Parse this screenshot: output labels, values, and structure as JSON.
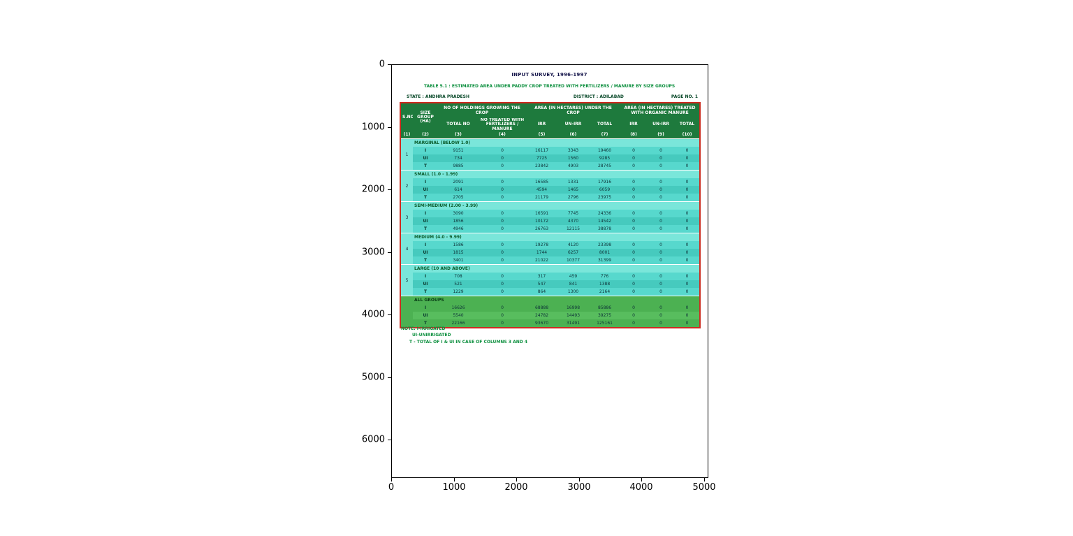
{
  "axes": {
    "y_ticks": [
      "0",
      "1000",
      "2000",
      "3000",
      "4000",
      "5000",
      "6000"
    ],
    "x_ticks": [
      "0",
      "1000",
      "2000",
      "3000",
      "4000",
      "5000"
    ]
  },
  "chart_data": {
    "type": "table",
    "title": "INPUT SURVEY, 1996-1997",
    "subtitle": "TABLE 5.1 : ESTIMATED AREA UNDER PADDY CROP TREATED WITH FERTILIZERS / MANURE BY SIZE GROUPS",
    "state": "STATE : ANDHRA PRADESH",
    "district": "DISTRICT : ADILABAD",
    "page": "PAGE NO. 1",
    "header": {
      "sno": "S.NO",
      "size_group": "SIZE GROUP (HA)",
      "holdings_group": "NO OF HOLDINGS GROWING THE CROP",
      "holdings_sub": [
        "TOTAL NO",
        "NO TREATED WITH FERTILIZERS / MANURE"
      ],
      "area_crop_group": "AREA (IN HECTARES) UNDER THE CROP",
      "area_crop_sub": [
        "IRR",
        "UN-IRR",
        "TOTAL"
      ],
      "area_manure_group": "AREA (IN HECTARES) TREATED WITH ORGANIC MANURE",
      "area_manure_sub": [
        "IRR",
        "UN-IRR",
        "TOTAL"
      ],
      "col_numbers": [
        "(1)",
        "(2)",
        "(3)",
        "(4)",
        "(5)",
        "(6)",
        "(7)",
        "(8)",
        "(9)",
        "(10)"
      ]
    },
    "sections": [
      {
        "sno": "1",
        "title": "MARGINAL (BELOW 1.0)",
        "rows": [
          [
            "I",
            "9151",
            "0",
            "16117",
            "3343",
            "19460",
            "0",
            "0",
            "0"
          ],
          [
            "UI",
            "734",
            "0",
            "7725",
            "1560",
            "9285",
            "0",
            "0",
            "0"
          ],
          [
            "T",
            "9885",
            "0",
            "23842",
            "4903",
            "28745",
            "0",
            "0",
            "0"
          ]
        ]
      },
      {
        "sno": "2",
        "title": "SMALL (1.0 - 1.99)",
        "rows": [
          [
            "I",
            "2091",
            "0",
            "16585",
            "1331",
            "17916",
            "0",
            "0",
            "0"
          ],
          [
            "UI",
            "614",
            "0",
            "4594",
            "1465",
            "6059",
            "0",
            "0",
            "0"
          ],
          [
            "T",
            "2705",
            "0",
            "21179",
            "2796",
            "23975",
            "0",
            "0",
            "0"
          ]
        ]
      },
      {
        "sno": "3",
        "title": "SEMI-MEDIUM (2.00 - 3.99)",
        "rows": [
          [
            "I",
            "3090",
            "0",
            "16591",
            "7745",
            "24336",
            "0",
            "0",
            "0"
          ],
          [
            "UI",
            "1856",
            "0",
            "10172",
            "4370",
            "14542",
            "0",
            "0",
            "0"
          ],
          [
            "T",
            "4946",
            "0",
            "26763",
            "12115",
            "38878",
            "0",
            "0",
            "0"
          ]
        ]
      },
      {
        "sno": "4",
        "title": "MEDIUM (4.0 - 9.99)",
        "rows": [
          [
            "I",
            "1586",
            "0",
            "19278",
            "4120",
            "23398",
            "0",
            "0",
            "0"
          ],
          [
            "UI",
            "1815",
            "0",
            "1744",
            "6257",
            "8001",
            "0",
            "0",
            "0"
          ],
          [
            "T",
            "3401",
            "0",
            "21022",
            "10377",
            "31399",
            "0",
            "0",
            "0"
          ]
        ]
      },
      {
        "sno": "5",
        "title": "LARGE (10 AND ABOVE)",
        "rows": [
          [
            "I",
            "708",
            "0",
            "317",
            "459",
            "776",
            "0",
            "0",
            "0"
          ],
          [
            "UI",
            "521",
            "0",
            "547",
            "841",
            "1388",
            "0",
            "0",
            "0"
          ],
          [
            "T",
            "1229",
            "0",
            "864",
            "1300",
            "2164",
            "0",
            "0",
            "0"
          ]
        ]
      },
      {
        "sno": "",
        "title": "ALL GROUPS",
        "variant": "green",
        "rows": [
          [
            "I",
            "16626",
            "0",
            "68888",
            "16998",
            "85886",
            "0",
            "0",
            "0"
          ],
          [
            "UI",
            "5540",
            "0",
            "24782",
            "14493",
            "39275",
            "0",
            "0",
            "0"
          ],
          [
            "T",
            "22166",
            "0",
            "93670",
            "31491",
            "125161",
            "0",
            "0",
            "0"
          ]
        ]
      }
    ],
    "note": [
      "NOTE: I-IRRIGATED",
      "UI-UNIRRIGATED",
      "T - TOTAL OF I & UI IN CASE OF COLUMNS 3 AND 4"
    ]
  },
  "colors": {
    "header_green": "#1e7a3d",
    "row_teal": "#57d8cd",
    "row_teal_dark": "#46cabe",
    "section_teal": "#7ae6da",
    "all_groups_green": "#4cb152",
    "border_red": "#cd2b20",
    "note_green": "#0c8f3e"
  }
}
